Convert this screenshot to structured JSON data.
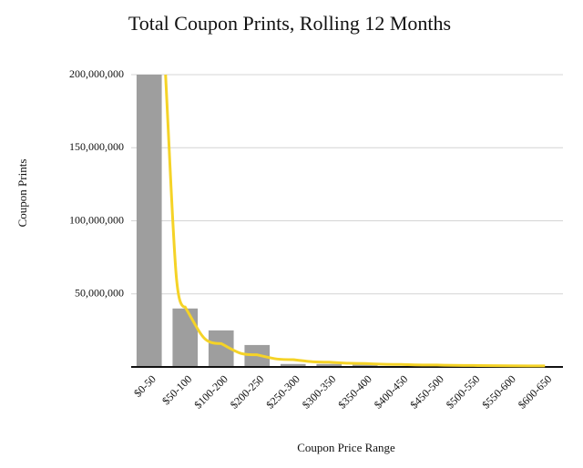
{
  "chart_data": {
    "type": "bar",
    "title": "Total Coupon Prints, Rolling 12 Months",
    "x_label": "Coupon Price Range",
    "y_label": "Coupon Prints",
    "categories": [
      "$0-50",
      "$50-100",
      "$100-200",
      "$200-250",
      "$250-300",
      "$300-350",
      "$350-400",
      "$400-450",
      "$450-500",
      "$500-550",
      "$550-600",
      "$600-650"
    ],
    "values": [
      200000000,
      40000000,
      25000000,
      15000000,
      2000000,
      2000000,
      1500000,
      500000,
      300000,
      200000,
      200000,
      100000
    ],
    "color": "#9e9e9e",
    "trendline": {
      "color": "#f5d327",
      "values": [
        200000000,
        41000000,
        16000000,
        8300000,
        5000000,
        3300000,
        2300000,
        1700000,
        1300000,
        1000000,
        800000,
        700000
      ]
    },
    "ylim": [
      0,
      200000000
    ],
    "yticks": [
      {
        "value": 50000000,
        "label": "50,000,000"
      },
      {
        "value": 100000000,
        "label": "100,000,000"
      },
      {
        "value": 150000000,
        "label": "150,000,000"
      },
      {
        "value": 200000000,
        "label": "200,000,000"
      }
    ],
    "grid": true
  }
}
